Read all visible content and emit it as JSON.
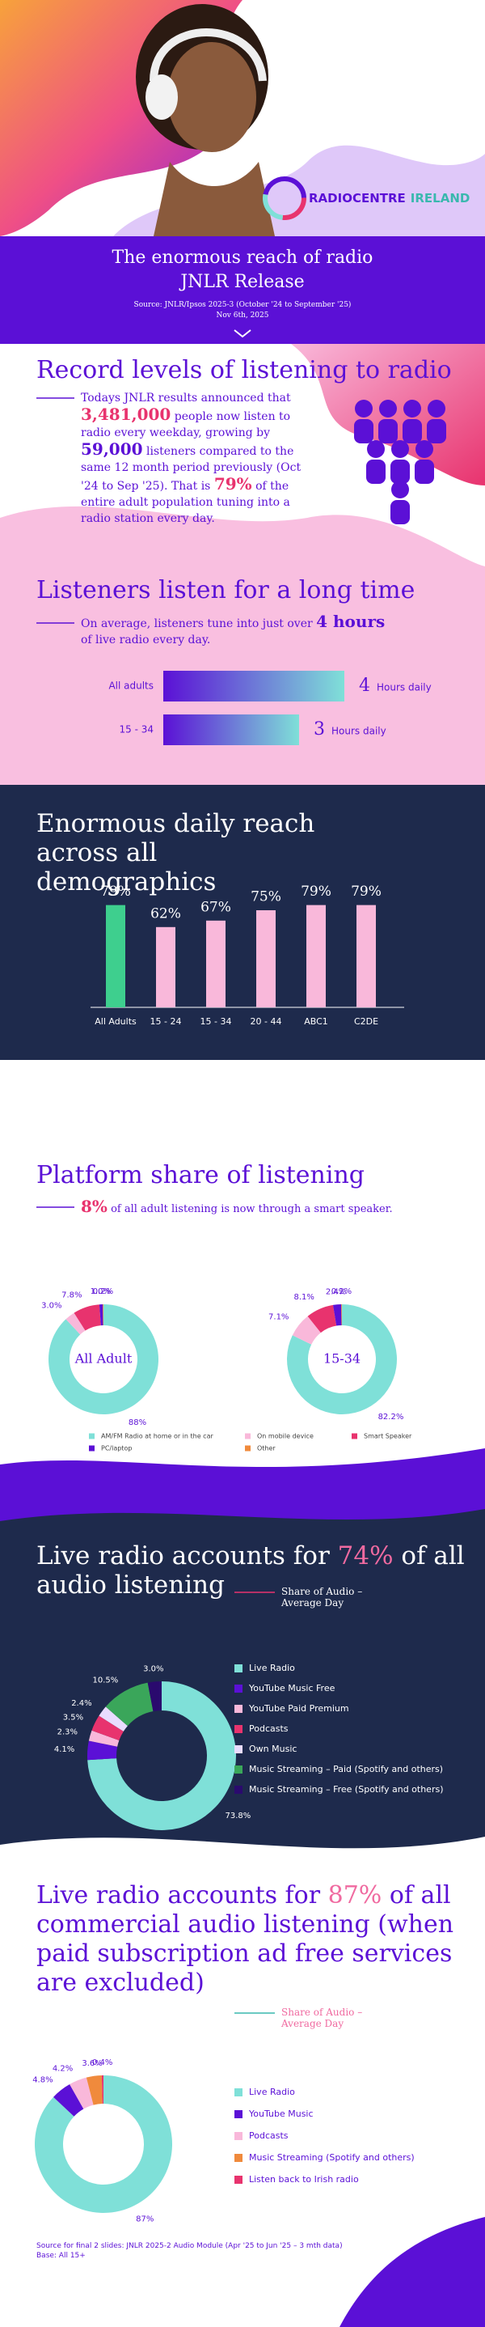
{
  "header": {
    "logo_name": "RADIOCENTRE",
    "logo_region": "IRELAND",
    "title": "The enormous reach of radio",
    "subtitle": "JNLR Release",
    "source": "Source: JNLR/Ipsos 2025-3 (October '24 to September '25)",
    "date": "Nov 6th, 2025"
  },
  "record": {
    "heading": "Record levels of listening to radio",
    "body": [
      "Todays JNLR results announced that",
      "3,481,000",
      "people now listen to radio every weekday, growing by",
      "59,000",
      "listeners compared to the same 12 month period previously (Oct '24 to Sep '25). That is",
      "79%",
      "of the entire adult population tuning into a radio station every day."
    ]
  },
  "time": {
    "heading": "Listeners listen for a long time",
    "body": [
      "On average, listeners tune into just over",
      "4 hours",
      "of live radio every day."
    ]
  },
  "chart_data": [
    {
      "type": "hbar",
      "categories": [
        "All adults",
        "15 - 34"
      ],
      "values": [
        4,
        3
      ],
      "unit": "Hours daily",
      "colors": [
        "#5b10d6",
        "#7fe0d8"
      ]
    },
    {
      "type": "bar",
      "title": "Enormous daily reach across all demographics",
      "categories": [
        "All Adults",
        "15 - 24",
        "15 - 34",
        "20 - 44",
        "ABC1",
        "C2DE"
      ],
      "values": [
        79,
        62,
        67,
        75,
        79,
        79
      ],
      "value_labels": [
        "79%",
        "62%",
        "67%",
        "75%",
        "79%",
        "79%"
      ],
      "colors": [
        "#3ecf8e",
        "#f9b8da",
        "#f9b8da",
        "#f9b8da",
        "#f9b8da",
        "#f9b8da"
      ]
    },
    {
      "type": "donut",
      "title": "Platform share of listening",
      "subtitle": [
        "8%",
        "of all adult listening is now through a smart speaker."
      ],
      "categories": [
        "AM/FM Radio at home or in the car",
        "On mobile device",
        "Smart Speaker",
        "PC/laptop",
        "Other"
      ],
      "colors": [
        "#7fe0d8",
        "#f9b8da",
        "#e8336e",
        "#5b10d6",
        "#f08a3c"
      ],
      "series": [
        {
          "name": "All Adult",
          "values": [
            88,
            3.0,
            7.8,
            1.0,
            0.2
          ],
          "value_labels": [
            "88%",
            "3.0%",
            "7.8%",
            "1.0%",
            "0.2%"
          ]
        },
        {
          "name": "15-34",
          "values": [
            82.2,
            7.1,
            8.1,
            2.4,
            0.2
          ],
          "value_labels": [
            "82.2%",
            "7.1%",
            "8.1%",
            "2.4%",
            "0.2%"
          ]
        }
      ]
    },
    {
      "type": "donut",
      "title": [
        "Live radio accounts for",
        "74%",
        "of all audio listening"
      ],
      "subtitle": "Share of Audio – Average Day",
      "categories": [
        "Live Radio",
        "YouTube Music Free",
        "YouTube Paid Premium",
        "Podcasts",
        "Own Music",
        "Music Streaming – Paid (Spotify and others)",
        "Music Streaming – Free (Spotify and others)"
      ],
      "colors": [
        "#7fe0d8",
        "#5b10d6",
        "#f9b8da",
        "#e8336e",
        "#e9dcff",
        "#3aa65a",
        "#2a0a6e"
      ],
      "values": [
        73.8,
        4.1,
        2.3,
        3.5,
        2.4,
        10.5,
        3.0
      ],
      "value_labels": [
        "73.8%",
        "4.1%",
        "2.3%",
        "3.5%",
        "2.4%",
        "10.5%",
        "3.0%"
      ]
    },
    {
      "type": "donut",
      "title": [
        "Live radio accounts for",
        "87%",
        "of all commercial audio listening (when paid subscription ad free services are excluded)"
      ],
      "subtitle": "Share of Audio – Average Day",
      "categories": [
        "Live Radio",
        "YouTube Music",
        "Podcasts",
        "Music Streaming (Spotify and others)",
        "Listen back to Irish radio"
      ],
      "colors": [
        "#7fe0d8",
        "#5b10d6",
        "#f9b8da",
        "#f08a3c",
        "#e8336e"
      ],
      "values": [
        87,
        4.8,
        4.2,
        3.6,
        0.4
      ],
      "value_labels": [
        "87%",
        "4.8%",
        "4.2%",
        "3.6%",
        "0.4%"
      ]
    }
  ],
  "footer": {
    "source": "Source for final 2 slides: JNLR 2025-2 Audio Module (Apr '25 to Jun '25 – 3 mth data)",
    "base": "Base: All 15+"
  }
}
